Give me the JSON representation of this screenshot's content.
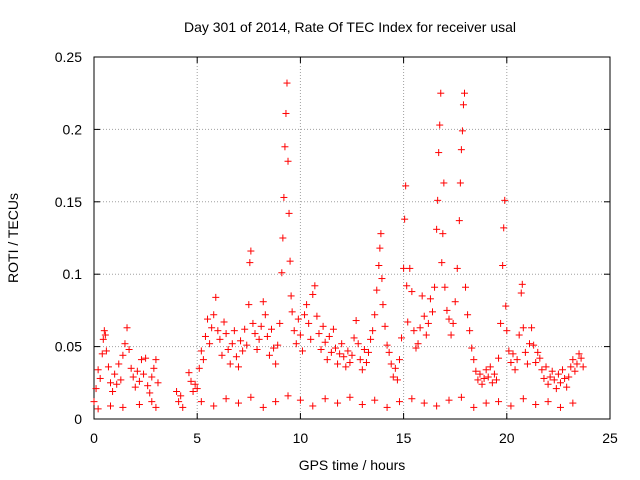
{
  "chart_data": {
    "type": "scatter",
    "title": "Day 301 of 2014, Rate Of TEC Index for receiver usal",
    "xlabel": "GPS time / hours",
    "ylabel": "ROTI / TECUs",
    "xlim": [
      0,
      25
    ],
    "ylim": [
      0,
      0.25
    ],
    "grid": true,
    "marker": "+",
    "color": "#ff0000",
    "xticks": [
      0,
      5,
      10,
      15,
      20,
      25
    ],
    "xtick_labels": [
      "0",
      "5",
      "10",
      "15",
      "20",
      "25"
    ],
    "yticks": [
      0,
      0.05,
      0.1,
      0.15,
      0.2,
      0.25
    ],
    "ytick_labels": [
      "0",
      "0.05",
      "0.1",
      "0.15",
      "0.2",
      "0.25"
    ],
    "series": [
      {
        "name": "ROTI",
        "points": [
          [
            0.0,
            0.012
          ],
          [
            0.1,
            0.021
          ],
          [
            0.2,
            0.034
          ],
          [
            0.3,
            0.028
          ],
          [
            0.4,
            0.045
          ],
          [
            0.45,
            0.055
          ],
          [
            0.5,
            0.061
          ],
          [
            0.55,
            0.058
          ],
          [
            0.6,
            0.047
          ],
          [
            0.7,
            0.036
          ],
          [
            0.8,
            0.025
          ],
          [
            0.9,
            0.019
          ],
          [
            1.0,
            0.031
          ],
          [
            1.1,
            0.024
          ],
          [
            1.2,
            0.038
          ],
          [
            1.3,
            0.027
          ],
          [
            1.4,
            0.044
          ],
          [
            1.5,
            0.052
          ],
          [
            1.6,
            0.063
          ],
          [
            1.7,
            0.048
          ],
          [
            1.8,
            0.035
          ],
          [
            1.9,
            0.029
          ],
          [
            2.0,
            0.022
          ],
          [
            2.1,
            0.033
          ],
          [
            2.2,
            0.026
          ],
          [
            2.3,
            0.041
          ],
          [
            2.4,
            0.031
          ],
          [
            2.5,
            0.042
          ],
          [
            2.6,
            0.023
          ],
          [
            2.7,
            0.018
          ],
          [
            2.8,
            0.029
          ],
          [
            2.9,
            0.035
          ],
          [
            3.0,
            0.041
          ],
          [
            3.1,
            0.025
          ],
          [
            0.2,
            0.007
          ],
          [
            0.8,
            0.009
          ],
          [
            1.4,
            0.008
          ],
          [
            2.2,
            0.01
          ],
          [
            2.8,
            0.012
          ],
          [
            3.0,
            0.008
          ],
          [
            4.0,
            0.019
          ],
          [
            4.1,
            0.012
          ],
          [
            4.2,
            0.016
          ],
          [
            4.3,
            0.008
          ],
          [
            4.6,
            0.032
          ],
          [
            4.7,
            0.026
          ],
          [
            4.8,
            0.019
          ],
          [
            4.9,
            0.024
          ],
          [
            5.0,
            0.021
          ],
          [
            5.1,
            0.035
          ],
          [
            5.2,
            0.047
          ],
          [
            5.3,
            0.041
          ],
          [
            5.4,
            0.057
          ],
          [
            5.5,
            0.069
          ],
          [
            5.6,
            0.052
          ],
          [
            5.7,
            0.063
          ],
          [
            5.8,
            0.072
          ],
          [
            5.9,
            0.084
          ],
          [
            6.0,
            0.061
          ],
          [
            6.1,
            0.055
          ],
          [
            6.2,
            0.044
          ],
          [
            6.3,
            0.067
          ],
          [
            6.4,
            0.059
          ],
          [
            6.5,
            0.048
          ],
          [
            6.6,
            0.038
          ],
          [
            6.7,
            0.052
          ],
          [
            6.8,
            0.061
          ],
          [
            6.9,
            0.043
          ],
          [
            7.0,
            0.036
          ],
          [
            7.1,
            0.054
          ],
          [
            7.2,
            0.047
          ],
          [
            7.3,
            0.062
          ],
          [
            7.4,
            0.051
          ],
          [
            7.5,
            0.079
          ],
          [
            7.55,
            0.108
          ],
          [
            7.6,
            0.116
          ],
          [
            7.7,
            0.066
          ],
          [
            7.8,
            0.059
          ],
          [
            7.9,
            0.048
          ],
          [
            8.0,
            0.055
          ],
          [
            8.1,
            0.064
          ],
          [
            8.2,
            0.081
          ],
          [
            8.3,
            0.072
          ],
          [
            8.4,
            0.057
          ],
          [
            8.5,
            0.044
          ],
          [
            8.6,
            0.062
          ],
          [
            8.7,
            0.049
          ],
          [
            8.8,
            0.038
          ],
          [
            8.9,
            0.051
          ],
          [
            9.0,
            0.066
          ],
          [
            9.1,
            0.101
          ],
          [
            9.15,
            0.125
          ],
          [
            9.2,
            0.153
          ],
          [
            9.25,
            0.188
          ],
          [
            9.3,
            0.211
          ],
          [
            9.35,
            0.232
          ],
          [
            9.4,
            0.178
          ],
          [
            9.45,
            0.142
          ],
          [
            9.5,
            0.109
          ],
          [
            9.55,
            0.085
          ],
          [
            9.6,
            0.074
          ],
          [
            9.7,
            0.061
          ],
          [
            9.8,
            0.052
          ],
          [
            9.9,
            0.069
          ],
          [
            10.0,
            0.058
          ],
          [
            10.1,
            0.047
          ],
          [
            10.2,
            0.072
          ],
          [
            10.3,
            0.079
          ],
          [
            10.4,
            0.066
          ],
          [
            10.5,
            0.055
          ],
          [
            10.6,
            0.086
          ],
          [
            10.7,
            0.092
          ],
          [
            10.8,
            0.071
          ],
          [
            10.9,
            0.059
          ],
          [
            11.0,
            0.048
          ],
          [
            11.1,
            0.064
          ],
          [
            11.2,
            0.053
          ],
          [
            11.3,
            0.041
          ],
          [
            11.4,
            0.057
          ],
          [
            11.5,
            0.046
          ],
          [
            11.6,
            0.062
          ],
          [
            11.7,
            0.049
          ],
          [
            11.8,
            0.038
          ],
          [
            11.9,
            0.045
          ],
          [
            12.0,
            0.052
          ],
          [
            12.1,
            0.043
          ],
          [
            12.2,
            0.036
          ],
          [
            12.3,
            0.047
          ],
          [
            12.4,
            0.039
          ],
          [
            12.5,
            0.044
          ],
          [
            12.6,
            0.056
          ],
          [
            12.7,
            0.068
          ],
          [
            12.8,
            0.052
          ],
          [
            12.9,
            0.041
          ],
          [
            13.0,
            0.034
          ],
          [
            13.1,
            0.048
          ],
          [
            13.2,
            0.039
          ],
          [
            13.3,
            0.046
          ],
          [
            13.4,
            0.055
          ],
          [
            13.5,
            0.061
          ],
          [
            13.6,
            0.072
          ],
          [
            13.7,
            0.089
          ],
          [
            13.8,
            0.106
          ],
          [
            13.85,
            0.118
          ],
          [
            13.9,
            0.128
          ],
          [
            13.95,
            0.097
          ],
          [
            14.0,
            0.079
          ],
          [
            14.1,
            0.064
          ],
          [
            14.2,
            0.051
          ],
          [
            14.3,
            0.046
          ],
          [
            14.4,
            0.038
          ],
          [
            14.5,
            0.029
          ],
          [
            14.6,
            0.035
          ],
          [
            14.7,
            0.027
          ],
          [
            14.8,
            0.041
          ],
          [
            14.9,
            0.056
          ],
          [
            15.0,
            0.104
          ],
          [
            15.05,
            0.138
          ],
          [
            15.1,
            0.161
          ],
          [
            15.15,
            0.092
          ],
          [
            15.2,
            0.067
          ],
          [
            15.3,
            0.104
          ],
          [
            15.4,
            0.088
          ],
          [
            15.5,
            0.061
          ],
          [
            15.6,
            0.049
          ],
          [
            15.7,
            0.052
          ],
          [
            15.8,
            0.063
          ],
          [
            15.9,
            0.085
          ],
          [
            16.0,
            0.071
          ],
          [
            16.1,
            0.058
          ],
          [
            16.2,
            0.066
          ],
          [
            16.3,
            0.083
          ],
          [
            16.4,
            0.074
          ],
          [
            16.5,
            0.091
          ],
          [
            16.6,
            0.131
          ],
          [
            16.65,
            0.151
          ],
          [
            16.7,
            0.184
          ],
          [
            16.75,
            0.203
          ],
          [
            16.8,
            0.225
          ],
          [
            16.85,
            0.108
          ],
          [
            16.9,
            0.128
          ],
          [
            16.95,
            0.163
          ],
          [
            17.0,
            0.091
          ],
          [
            17.1,
            0.075
          ],
          [
            17.2,
            0.069
          ],
          [
            17.3,
            0.058
          ],
          [
            17.4,
            0.066
          ],
          [
            17.5,
            0.081
          ],
          [
            17.6,
            0.104
          ],
          [
            17.7,
            0.137
          ],
          [
            17.75,
            0.163
          ],
          [
            17.8,
            0.186
          ],
          [
            17.85,
            0.199
          ],
          [
            17.9,
            0.217
          ],
          [
            17.95,
            0.225
          ],
          [
            18.0,
            0.091
          ],
          [
            18.1,
            0.072
          ],
          [
            18.2,
            0.061
          ],
          [
            18.3,
            0.049
          ],
          [
            18.4,
            0.041
          ],
          [
            18.5,
            0.033
          ],
          [
            18.6,
            0.027
          ],
          [
            18.7,
            0.031
          ],
          [
            18.8,
            0.024
          ],
          [
            18.9,
            0.028
          ],
          [
            19.0,
            0.034
          ],
          [
            19.1,
            0.029
          ],
          [
            19.2,
            0.036
          ],
          [
            19.3,
            0.025
          ],
          [
            19.4,
            0.031
          ],
          [
            19.5,
            0.027
          ],
          [
            19.6,
            0.042
          ],
          [
            19.7,
            0.066
          ],
          [
            19.8,
            0.106
          ],
          [
            19.85,
            0.132
          ],
          [
            19.9,
            0.151
          ],
          [
            19.95,
            0.078
          ],
          [
            20.0,
            0.061
          ],
          [
            20.1,
            0.047
          ],
          [
            20.2,
            0.039
          ],
          [
            20.3,
            0.045
          ],
          [
            20.4,
            0.034
          ],
          [
            20.5,
            0.041
          ],
          [
            20.6,
            0.058
          ],
          [
            20.7,
            0.087
          ],
          [
            20.75,
            0.093
          ],
          [
            20.8,
            0.063
          ],
          [
            20.9,
            0.046
          ],
          [
            21.0,
            0.038
          ],
          [
            21.1,
            0.052
          ],
          [
            21.2,
            0.063
          ],
          [
            21.3,
            0.051
          ],
          [
            21.4,
            0.039
          ],
          [
            21.5,
            0.046
          ],
          [
            21.6,
            0.042
          ],
          [
            21.7,
            0.034
          ],
          [
            21.8,
            0.028
          ],
          [
            21.9,
            0.036
          ],
          [
            22.0,
            0.024
          ],
          [
            22.1,
            0.029
          ],
          [
            22.2,
            0.033
          ],
          [
            22.3,
            0.027
          ],
          [
            22.4,
            0.021
          ],
          [
            22.5,
            0.031
          ],
          [
            22.6,
            0.025
          ],
          [
            22.7,
            0.034
          ],
          [
            22.8,
            0.028
          ],
          [
            22.9,
            0.022
          ],
          [
            23.0,
            0.029
          ],
          [
            23.1,
            0.036
          ],
          [
            23.2,
            0.041
          ],
          [
            23.3,
            0.033
          ],
          [
            23.4,
            0.038
          ],
          [
            23.5,
            0.045
          ],
          [
            23.6,
            0.042
          ],
          [
            23.7,
            0.036
          ],
          [
            5.2,
            0.012
          ],
          [
            5.8,
            0.009
          ],
          [
            6.4,
            0.014
          ],
          [
            7.0,
            0.011
          ],
          [
            7.6,
            0.015
          ],
          [
            8.2,
            0.008
          ],
          [
            8.8,
            0.012
          ],
          [
            9.4,
            0.016
          ],
          [
            10.0,
            0.013
          ],
          [
            10.6,
            0.009
          ],
          [
            11.2,
            0.014
          ],
          [
            11.8,
            0.011
          ],
          [
            12.4,
            0.015
          ],
          [
            13.0,
            0.01
          ],
          [
            13.6,
            0.013
          ],
          [
            14.2,
            0.008
          ],
          [
            14.8,
            0.012
          ],
          [
            15.4,
            0.014
          ],
          [
            16.0,
            0.011
          ],
          [
            16.6,
            0.009
          ],
          [
            17.2,
            0.013
          ],
          [
            17.8,
            0.015
          ],
          [
            18.4,
            0.008
          ],
          [
            19.0,
            0.011
          ],
          [
            19.6,
            0.012
          ],
          [
            20.2,
            0.009
          ],
          [
            20.8,
            0.014
          ],
          [
            21.4,
            0.01
          ],
          [
            22.0,
            0.012
          ],
          [
            22.6,
            0.008
          ],
          [
            23.2,
            0.011
          ]
        ]
      }
    ]
  }
}
